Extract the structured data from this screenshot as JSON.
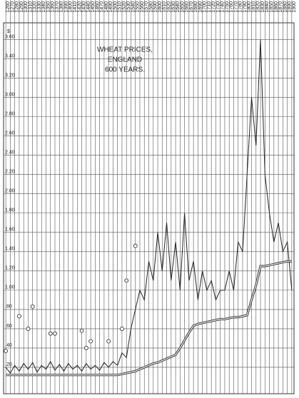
{
  "chart_data": {
    "type": "line",
    "title": [
      "WHEAT PRICES,",
      "ENGLAND",
      "600 YEARS."
    ],
    "ylabel": "$",
    "x": [
      1260,
      1270,
      1280,
      1290,
      1300,
      1310,
      1320,
      1330,
      1340,
      1350,
      1360,
      1370,
      1380,
      1390,
      1400,
      1410,
      1420,
      1430,
      1440,
      1450,
      1460,
      1470,
      1480,
      1490,
      1500,
      1510,
      1520,
      1530,
      1540,
      1550,
      1560,
      1570,
      1580,
      1590,
      1600,
      1610,
      1620,
      1630,
      1640,
      1650,
      1660,
      1670,
      1680,
      1690,
      1700,
      1710,
      1720,
      1730,
      1740,
      1750,
      1760,
      1770,
      1780,
      1790,
      1800,
      1810,
      1820,
      1830,
      1840,
      1850,
      1860,
      1870,
      1880,
      1890,
      1900
    ],
    "xlim": [
      1255,
      1905
    ],
    "xticks": [
      1260,
      1270,
      1280,
      1290,
      1300,
      1310,
      1320,
      1330,
      1340,
      1350,
      1360,
      1370,
      1380,
      1390,
      1400,
      1410,
      1420,
      1430,
      1440,
      1450,
      1460,
      1470,
      1480,
      1490,
      1500,
      1510,
      1520,
      1530,
      1540,
      1550,
      1560,
      1570,
      1580,
      1590,
      1600,
      1610,
      1620,
      1630,
      1640,
      1650,
      1660,
      1670,
      1680,
      1690,
      1700,
      1710,
      1720,
      1730,
      1740,
      1750,
      1760,
      1770,
      1780,
      1790,
      1800,
      1810,
      1820,
      1830,
      1840,
      1850,
      1860,
      1870,
      1880,
      1890,
      1900
    ],
    "ylim": [
      0,
      3.7
    ],
    "yticks": [
      {
        "value": 0.2,
        "label": ".20"
      },
      {
        "value": 0.4,
        "label": ".40"
      },
      {
        "value": 0.6,
        "label": ".60"
      },
      {
        "value": 0.8,
        "label": ".80"
      },
      {
        "value": 1,
        "label": "1.00"
      },
      {
        "value": 1.2,
        "label": "1.20"
      },
      {
        "value": 1.4,
        "label": "1.40"
      },
      {
        "value": 1.6,
        "label": "1.60"
      },
      {
        "value": 1.8,
        "label": "1.80"
      },
      {
        "value": 2,
        "label": "2.00"
      },
      {
        "value": 2.2,
        "label": "2.20"
      },
      {
        "value": 2.4,
        "label": "2.40"
      },
      {
        "value": 2.6,
        "label": "2.60"
      },
      {
        "value": 2.8,
        "label": "2.80"
      },
      {
        "value": 3,
        "label": "3.00"
      },
      {
        "value": 3.2,
        "label": "3.20"
      },
      {
        "value": 3.4,
        "label": "3.40"
      },
      {
        "value": 3.6,
        "label": "3.60"
      }
    ],
    "grid": true,
    "series": [
      {
        "color": "#222",
        "style": "line",
        "values": [
          0.2,
          0.14,
          0.22,
          0.16,
          0.24,
          0.18,
          0.25,
          0.15,
          0.22,
          0.18,
          0.26,
          0.17,
          0.23,
          0.16,
          0.24,
          0.18,
          0.22,
          0.16,
          0.24,
          0.18,
          0.22,
          0.17,
          0.25,
          0.2,
          0.26,
          0.22,
          0.35,
          0.3,
          0.6,
          0.8,
          1.0,
          0.9,
          1.3,
          1.1,
          1.6,
          1.2,
          1.7,
          1.1,
          1.5,
          1.0,
          1.8,
          1.1,
          1.3,
          0.9,
          1.2,
          1.0,
          1.1,
          0.9,
          1.0,
          1.0,
          1.2,
          1.0,
          1.5,
          1.4,
          2.2,
          3.0,
          2.5,
          3.6,
          2.2,
          1.8,
          1.5,
          1.7,
          1.4,
          1.5,
          1.0
        ]
      },
      {
        "color": "#222",
        "style": "double-line",
        "values": [
          0.12,
          0.12,
          0.12,
          0.12,
          0.12,
          0.12,
          0.12,
          0.12,
          0.12,
          0.12,
          0.12,
          0.12,
          0.12,
          0.12,
          0.12,
          0.12,
          0.12,
          0.12,
          0.12,
          0.12,
          0.12,
          0.12,
          0.12,
          0.12,
          0.12,
          0.12,
          0.13,
          0.14,
          0.15,
          0.16,
          0.18,
          0.2,
          0.22,
          0.24,
          0.25,
          0.27,
          0.29,
          0.31,
          0.33,
          0.4,
          0.48,
          0.56,
          0.63,
          0.65,
          0.66,
          0.67,
          0.68,
          0.69,
          0.7,
          0.7,
          0.71,
          0.72,
          0.72,
          0.73,
          0.74,
          0.9,
          1.05,
          1.25,
          1.25,
          1.26,
          1.27,
          1.28,
          1.29,
          1.3,
          1.3
        ]
      },
      {
        "color": "#222",
        "style": "circles",
        "values": [
          0.37,
          null,
          null,
          0.73,
          null,
          0.6,
          0.83,
          null,
          null,
          null,
          0.55,
          0.55,
          null,
          null,
          null,
          null,
          null,
          0.58,
          0.4,
          0.47,
          null,
          null,
          null,
          0.47,
          null,
          null,
          0.6,
          1.1,
          null,
          1.46,
          null,
          null,
          null,
          null,
          null,
          null,
          null,
          null,
          null,
          null,
          null,
          null,
          null,
          null,
          null,
          null,
          null,
          null,
          null,
          null,
          null,
          null,
          null,
          null,
          null,
          null,
          null,
          null,
          null,
          null,
          null,
          null,
          null,
          null,
          null
        ]
      }
    ]
  }
}
